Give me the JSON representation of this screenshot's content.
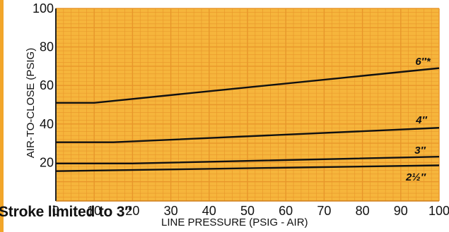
{
  "page": {
    "footnote": "Stroke limited to 3″",
    "paper_color": "#f6b53c",
    "grid_color": "#e8962a",
    "line_color": "#111111"
  },
  "chart_data": {
    "type": "line",
    "xlabel": "LINE PRESSURE (PSIG - AIR)",
    "ylabel": "AIR-TO-CLOSE (PSIG)",
    "xlim": [
      0,
      100
    ],
    "ylim": [
      0,
      100
    ],
    "x_ticks": [
      "0",
      "10",
      "20",
      "30",
      "40",
      "50",
      "60",
      "70",
      "80",
      "90",
      "100"
    ],
    "y_ticks": [
      "20",
      "40",
      "60",
      "80",
      "100"
    ],
    "grid": true,
    "series": [
      {
        "name": "6″*",
        "x": [
          0,
          10,
          100
        ],
        "y": [
          51,
          51,
          69
        ]
      },
      {
        "name": "4″",
        "x": [
          0,
          15,
          100
        ],
        "y": [
          30.5,
          30.5,
          38
        ]
      },
      {
        "name": "3″",
        "x": [
          0,
          20,
          100
        ],
        "y": [
          19.5,
          19.5,
          23
        ]
      },
      {
        "name": "2½″",
        "x": [
          0,
          100
        ],
        "y": [
          15.5,
          18.5
        ]
      }
    ]
  }
}
